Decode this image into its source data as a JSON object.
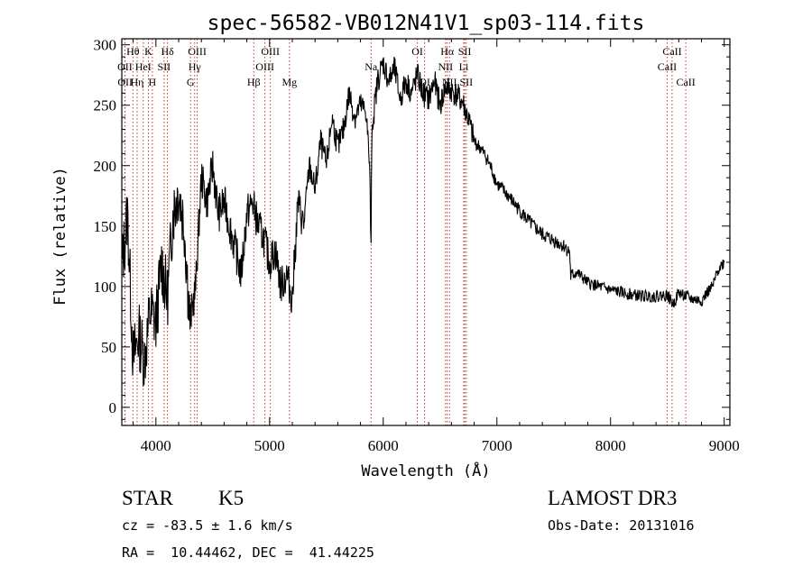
{
  "chart_data": {
    "type": "line",
    "title": "spec-56582-VB012N41V1_sp03-114.fits",
    "xlabel": "Wavelength (Å)",
    "ylabel": "Flux (relative)",
    "xlim": [
      3700,
      9050
    ],
    "ylim": [
      -15,
      305
    ],
    "xticks": [
      4000,
      5000,
      6000,
      7000,
      8000,
      9000
    ],
    "yticks": [
      0,
      50,
      100,
      150,
      200,
      250,
      300
    ],
    "series": [
      {
        "name": "flux",
        "x": [
          3700,
          3750,
          3800,
          3850,
          3900,
          3950,
          4000,
          4050,
          4100,
          4150,
          4200,
          4250,
          4300,
          4350,
          4400,
          4450,
          4500,
          4550,
          4600,
          4650,
          4700,
          4750,
          4800,
          4850,
          4900,
          4950,
          5000,
          5050,
          5100,
          5150,
          5200,
          5250,
          5300,
          5350,
          5400,
          5450,
          5500,
          5550,
          5600,
          5650,
          5700,
          5750,
          5800,
          5850,
          5880,
          5893,
          5900,
          5950,
          6000,
          6050,
          6100,
          6150,
          6200,
          6250,
          6300,
          6350,
          6400,
          6450,
          6500,
          6550,
          6600,
          6650,
          6700,
          6750,
          6800,
          6850,
          6900,
          6950,
          7000,
          7100,
          7200,
          7300,
          7400,
          7500,
          7600,
          7640,
          7650,
          7700,
          7800,
          7900,
          8000,
          8100,
          8200,
          8300,
          8400,
          8500,
          8550,
          8600,
          8700,
          8800,
          8850,
          8900,
          8950,
          9000
        ],
        "y": [
          115,
          160,
          40,
          60,
          40,
          80,
          70,
          120,
          90,
          160,
          180,
          150,
          70,
          100,
          190,
          170,
          200,
          160,
          170,
          150,
          130,
          110,
          160,
          170,
          150,
          140,
          120,
          130,
          100,
          110,
          90,
          170,
          150,
          200,
          180,
          220,
          200,
          240,
          215,
          230,
          260,
          240,
          250,
          245,
          200,
          130,
          230,
          270,
          285,
          270,
          280,
          255,
          270,
          260,
          275,
          260,
          255,
          270,
          250,
          265,
          262,
          258,
          252,
          238,
          220,
          215,
          208,
          198,
          185,
          175,
          163,
          152,
          143,
          138,
          133,
          128,
          108,
          112,
          103,
          100,
          97,
          95,
          93,
          92,
          92,
          93,
          85,
          95,
          90,
          88,
          95,
          100,
          115,
          120
        ]
      }
    ],
    "line_ids": [
      {
        "label": "Hθ",
        "wl": 3798,
        "row": 0
      },
      {
        "label": "OII",
        "wl": 3727,
        "row": 1
      },
      {
        "label": "OII",
        "wl": 3729,
        "row": 2
      },
      {
        "label": "Hη",
        "wl": 3835,
        "row": 2
      },
      {
        "label": "HeI",
        "wl": 3889,
        "row": 1
      },
      {
        "label": "K",
        "wl": 3934,
        "row": 0
      },
      {
        "label": "H",
        "wl": 3969,
        "row": 2
      },
      {
        "label": "SII",
        "wl": 4072,
        "row": 1
      },
      {
        "label": "Hδ",
        "wl": 4102,
        "row": 0
      },
      {
        "label": "OIII",
        "wl": 4363,
        "row": 0
      },
      {
        "label": "Hγ",
        "wl": 4341,
        "row": 1
      },
      {
        "label": "G",
        "wl": 4305,
        "row": 2
      },
      {
        "label": "Hβ",
        "wl": 4861,
        "row": 2
      },
      {
        "label": "OIII",
        "wl": 5007,
        "row": 0
      },
      {
        "label": "OIII",
        "wl": 4959,
        "row": 1
      },
      {
        "label": "Mg",
        "wl": 5175,
        "row": 2
      },
      {
        "label": "Na",
        "wl": 5893,
        "row": 1
      },
      {
        "label": "OI",
        "wl": 6300,
        "row": 0
      },
      {
        "label": "OI",
        "wl": 6364,
        "row": 2
      },
      {
        "label": "Hα",
        "wl": 6563,
        "row": 0
      },
      {
        "label": "SII",
        "wl": 6717,
        "row": 0
      },
      {
        "label": "NII",
        "wl": 6548,
        "row": 1
      },
      {
        "label": "Li",
        "wl": 6708,
        "row": 1
      },
      {
        "label": "NII",
        "wl": 6583,
        "row": 2
      },
      {
        "label": "SII",
        "wl": 6731,
        "row": 2
      },
      {
        "label": "CaII",
        "wl": 8542,
        "row": 0
      },
      {
        "label": "CaII",
        "wl": 8498,
        "row": 1
      },
      {
        "label": "CaII",
        "wl": 8662,
        "row": 2
      }
    ]
  },
  "info": {
    "object": "STAR",
    "subclass": "K5",
    "survey": "LAMOST DR3",
    "cz": "cz = -83.5 ± 1.6 km/s",
    "obs_date": "Obs-Date: 20131016",
    "coords": "RA =  10.44462, DEC =  41.44225"
  }
}
